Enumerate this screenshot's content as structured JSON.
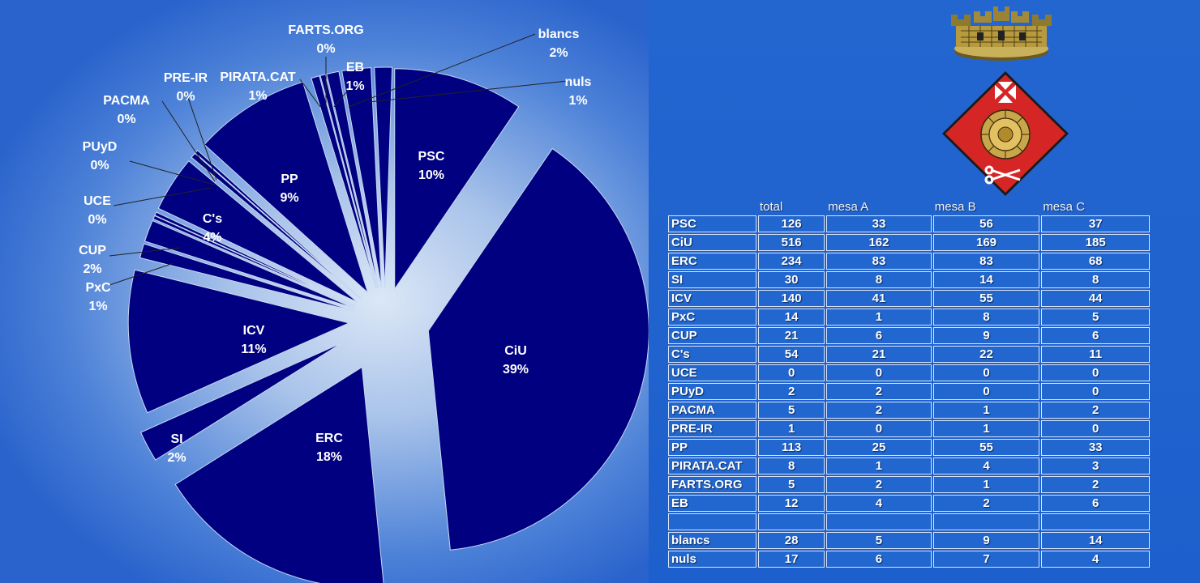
{
  "chart_data": {
    "type": "pie",
    "slices": [
      {
        "label": "PSC",
        "percent": "10%",
        "value": 126
      },
      {
        "label": "CiU",
        "percent": "39%",
        "value": 516
      },
      {
        "label": "ERC",
        "percent": "18%",
        "value": 234
      },
      {
        "label": "SI",
        "percent": "2%",
        "value": 30
      },
      {
        "label": "ICV",
        "percent": "11%",
        "value": 140
      },
      {
        "label": "PxC",
        "percent": "1%",
        "value": 14
      },
      {
        "label": "CUP",
        "percent": "2%",
        "value": 21
      },
      {
        "label": "UCE",
        "percent": "0%",
        "value": 0
      },
      {
        "label": "PUyD",
        "percent": "0%",
        "value": 2
      },
      {
        "label": "C's",
        "percent": "4%",
        "value": 54
      },
      {
        "label": "PACMA",
        "percent": "0%",
        "value": 5
      },
      {
        "label": "PRE-IR",
        "percent": "0%",
        "value": 1
      },
      {
        "label": "PP",
        "percent": "9%",
        "value": 113
      },
      {
        "label": "PIRATA.CAT",
        "percent": "1%",
        "value": 8
      },
      {
        "label": "FARTS.ORG",
        "percent": "0%",
        "value": 5
      },
      {
        "label": "EB",
        "percent": "1%",
        "value": 12
      },
      {
        "label": "blancs",
        "percent": "2%",
        "value": 28
      },
      {
        "label": "nuls",
        "percent": "1%",
        "value": 17
      }
    ],
    "slice_color": "#000080",
    "label_color": "#ffffff"
  },
  "table": {
    "headers": [
      "",
      "total",
      "mesa A",
      "mesa B",
      "mesa C"
    ],
    "rows": [
      [
        "PSC",
        "126",
        "33",
        "56",
        "37"
      ],
      [
        "CiU",
        "516",
        "162",
        "169",
        "185"
      ],
      [
        "ERC",
        "234",
        "83",
        "83",
        "68"
      ],
      [
        "SI",
        "30",
        "8",
        "14",
        "8"
      ],
      [
        "ICV",
        "140",
        "41",
        "55",
        "44"
      ],
      [
        "PxC",
        "14",
        "1",
        "8",
        "5"
      ],
      [
        "CUP",
        "21",
        "6",
        "9",
        "6"
      ],
      [
        "C's",
        "54",
        "21",
        "22",
        "11"
      ],
      [
        "UCE",
        "0",
        "0",
        "0",
        "0"
      ],
      [
        "PUyD",
        "2",
        "2",
        "0",
        "0"
      ],
      [
        "PACMA",
        "5",
        "2",
        "1",
        "2"
      ],
      [
        "PRE-IR",
        "1",
        "0",
        "1",
        "0"
      ],
      [
        "PP",
        "113",
        "25",
        "55",
        "33"
      ],
      [
        "PIRATA.CAT",
        "8",
        "1",
        "4",
        "3"
      ],
      [
        "FARTS.ORG",
        "5",
        "2",
        "1",
        "2"
      ],
      [
        "EB",
        "12",
        "4",
        "2",
        "6"
      ],
      [
        "",
        "",
        "",
        "",
        ""
      ],
      [
        "blancs",
        "28",
        "5",
        "9",
        "14"
      ],
      [
        "nuls",
        "17",
        "6",
        "7",
        "4"
      ]
    ]
  },
  "emblems": {
    "crown_icon": "mural-crown-icon",
    "shield_icon": "coat-of-arms-icon",
    "shield_color": "#d62525"
  }
}
